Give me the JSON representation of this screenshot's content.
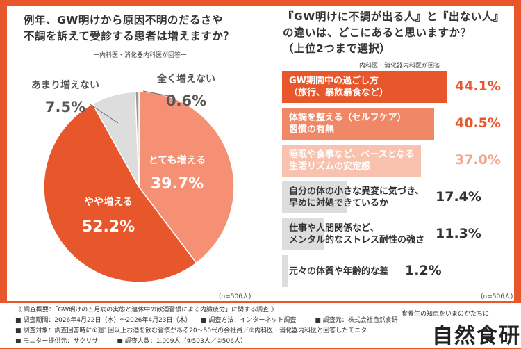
{
  "left_question": [
    "例年、GW明けから原因不明のだるさや",
    "不調を訴えて受診する患者は増えますか？"
  ],
  "left_subtitle": "ー内科医・消化器内科医が回答ー",
  "right_question": [
    "『GW明けに不調が出る人』と『出ない人』",
    "の違いは、どこにあると思いますか？",
    "（上位2つまで選択）"
  ],
  "right_subtitle": "ー内科医・消化器内科医が回答ー",
  "left_n": "(n=506人)",
  "right_n": "(n=506人)",
  "chart_data": [
    {
      "type": "pie",
      "slices": [
        {
          "label": "とても増える",
          "value": 39.7,
          "value_label": "39.7%",
          "color": "#f59074"
        },
        {
          "label": "やや増える",
          "value": 52.2,
          "value_label": "52.2%",
          "color": "#e7572b"
        },
        {
          "label": "あまり増えない",
          "value": 7.5,
          "value_label": "7.5%",
          "color": "#dddddd"
        },
        {
          "label": "全く増えない",
          "value": 0.6,
          "value_label": "0.6%",
          "color": "#9a9a9a"
        }
      ]
    },
    {
      "type": "bar",
      "orientation": "horizontal",
      "xlim": [
        0,
        50
      ],
      "categories": [
        [
          "GW期間中の過ごし方",
          "（旅行、暴飲暴食など）"
        ],
        [
          "体調を整える（セルフケア）",
          "習慣の有無"
        ],
        [
          "睡眠や食事など、ベースとなる",
          "生活リズムの安定感"
        ],
        [
          "自分の体の小さな異変に気づき、",
          "早めに対処できているか"
        ],
        [
          "仕事や人間関係など、",
          "メンタル的なストレス耐性の強さ"
        ],
        [
          "元々の体質や年齢的な差"
        ]
      ],
      "values": [
        44.1,
        40.5,
        37.0,
        17.4,
        11.3,
        1.2
      ],
      "value_labels": [
        "44.1%",
        "40.5%",
        "37.0%",
        "17.4%",
        "11.3%",
        "1.2%"
      ],
      "colors": [
        "#e7572b",
        "#f08766",
        "#f8c2ae",
        "#dddddd",
        "#dddddd",
        "#dddddd"
      ]
    }
  ],
  "footer": {
    "lines": [
      "《 調査概要：「GW明けの五月病の実態と連休中の飲酒習慣による内臓疲労」に関する調査 》",
      "■ 調査期間：2026年4月22日（水）〜2026年4月23日（木）　　■ 調査方法：インターネット調査　　　■ 調査元：株式会社自然食研",
      "■ 調査対象：調査回答時に①週1回以上お酒を飲む習慣がある20〜50代の会社員／②内科医・消化器内科医と回答したモニター",
      "■ モニター提供元：サクリサ　　　■ 調査人数：1,009人（①503人／②506人）"
    ],
    "tagline": "食養生の知恵をいまのかたちに",
    "logo": "自然食研"
  }
}
